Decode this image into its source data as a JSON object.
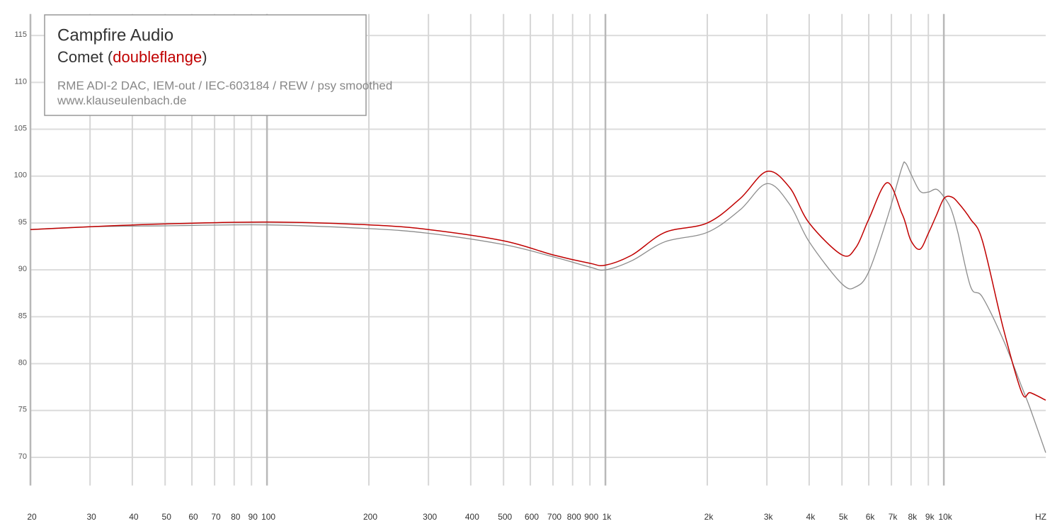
{
  "chart_data": {
    "type": "line",
    "title": "Campfire Audio",
    "subtitle": [
      "Comet (",
      "doubleflange",
      ")"
    ],
    "notes": [
      "RME ADI-2 DAC, IEM-out / IEC-603184 / REW / psy smoothed",
      "www.klauseulenbach.de"
    ],
    "x_label": "HZ",
    "x_scale": "log",
    "grid": true,
    "x": [
      20,
      30,
      50,
      100,
      200,
      300,
      500,
      700,
      900,
      1000,
      1200,
      1500,
      2000,
      2500,
      3000,
      3500,
      4000,
      5000,
      5500,
      6000,
      6800,
      7500,
      7700,
      8000,
      8500,
      9000,
      9500,
      10000,
      10500,
      11000,
      12000,
      13000,
      15000,
      17000,
      18000,
      20000
    ],
    "series": [
      {
        "color": "#8c8c8c",
        "values": [
          94.3,
          94.6,
          94.7,
          94.8,
          94.4,
          93.9,
          92.7,
          91.4,
          90.3,
          90.0,
          91.0,
          93.0,
          94.0,
          96.4,
          99.2,
          97.0,
          93.0,
          88.5,
          88.2,
          89.8,
          95.5,
          100.8,
          101.4,
          100.2,
          98.4,
          98.3,
          98.6,
          97.8,
          96.5,
          94.0,
          88.2,
          87.1,
          82.5,
          77.5,
          75.2,
          70.5
        ]
      },
      {
        "color": "#c00000",
        "values": [
          94.3,
          94.6,
          94.9,
          95.1,
          94.8,
          94.3,
          93.1,
          91.6,
          90.7,
          90.5,
          91.6,
          94.0,
          95.0,
          97.6,
          100.5,
          98.8,
          95.0,
          91.6,
          92.4,
          95.4,
          99.3,
          96.1,
          95.0,
          93.1,
          92.2,
          93.9,
          95.8,
          97.6,
          97.8,
          97.2,
          95.4,
          93.1,
          83.7,
          76.9,
          76.9,
          76.1
        ]
      }
    ],
    "xlim": [
      20,
      20000
    ],
    "ylim": [
      67,
      117.3
    ],
    "yticks": [
      70,
      75,
      80,
      85,
      90,
      95,
      100,
      105,
      110,
      115
    ],
    "xticks": [
      20,
      30,
      40,
      50,
      60,
      70,
      80,
      90,
      100,
      200,
      300,
      400,
      500,
      600,
      700,
      800,
      900,
      {
        "value": 1000,
        "label": "1k"
      },
      {
        "value": 2000,
        "label": "2k"
      },
      {
        "value": 3000,
        "label": "3k"
      },
      {
        "value": 4000,
        "label": "4k"
      },
      {
        "value": 5000,
        "label": "5k"
      },
      {
        "value": 6000,
        "label": "6k"
      },
      {
        "value": 7000,
        "label": "7k"
      },
      {
        "value": 8000,
        "label": "8k"
      },
      {
        "value": 9000,
        "label": "9k"
      },
      {
        "value": 10000,
        "label": "10k"
      }
    ]
  }
}
